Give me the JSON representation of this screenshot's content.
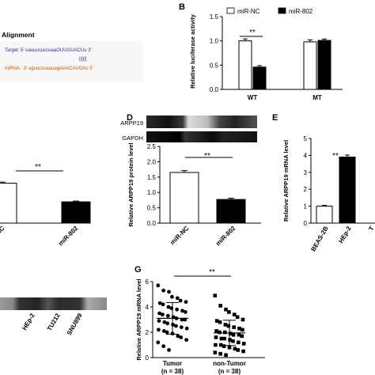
{
  "panels": {
    "a": {
      "header": "Alignment",
      "target_line": "Target: 5' uauuucuccuaaGUUGUACUu 3'",
      "pair_line": "||||||",
      "mirna_line": "miRNA : 3' uguuccuaauagAAACAUGAc 5'"
    },
    "b": {
      "letter": "B",
      "legend": [
        "miR-NC",
        "miR-802"
      ],
      "sig": "**"
    },
    "c": {
      "sig": "**"
    },
    "d": {
      "letter": "D",
      "blot_labels": [
        "ARPP19",
        "GAPDH"
      ],
      "sig": "**"
    },
    "e": {
      "letter": "E",
      "sig": "**"
    },
    "f": {
      "lanes": [
        "HEp-2",
        "TU212",
        "SNU899"
      ]
    },
    "g": {
      "letter": "G",
      "sig": "**"
    }
  },
  "chart_data": [
    {
      "id": "B",
      "type": "bar",
      "categories": [
        "WT",
        "MT"
      ],
      "series": [
        {
          "name": "miR-NC",
          "values": [
            1.0,
            0.98
          ],
          "errors": [
            0.04,
            0.04
          ],
          "color": "#ffffff"
        },
        {
          "name": "miR-802",
          "values": [
            0.46,
            1.01
          ],
          "errors": [
            0.03,
            0.03
          ],
          "color": "#000000"
        }
      ],
      "ylabel": "Relative luciferase activity",
      "ylim": [
        0,
        1.5
      ],
      "yticks": [
        "0.0",
        "0.5",
        "1.0",
        "1.5"
      ],
      "legend": "top"
    },
    {
      "id": "C",
      "type": "bar",
      "categories": [
        "miR-NC",
        "miR-802"
      ],
      "series": [
        {
          "name": "",
          "values": [
            1.05,
            0.56
          ],
          "errors": [
            0.03,
            0.02
          ],
          "colors": [
            "#ffffff",
            "#000000"
          ]
        }
      ],
      "ylim": [
        0,
        1.5
      ]
    },
    {
      "id": "D",
      "type": "bar",
      "categories": [
        "miR-NC",
        "miR-802"
      ],
      "series": [
        {
          "name": "",
          "values": [
            1.65,
            0.77
          ],
          "errors": [
            0.06,
            0.04
          ],
          "colors": [
            "#ffffff",
            "#000000"
          ]
        }
      ],
      "ylabel": "Relative ARPP19 protein level",
      "ylim": [
        0,
        2.5
      ],
      "yticks": [
        "0.0",
        "0.5",
        "1.0",
        "1.5",
        "2.0",
        "2.5"
      ]
    },
    {
      "id": "E",
      "type": "bar",
      "categories": [
        "BEAS-2B",
        "HEp-2",
        "T"
      ],
      "series": [
        {
          "name": "",
          "values": [
            1.0,
            3.9,
            0
          ],
          "errors": [
            0.05,
            0.12,
            0
          ],
          "colors": [
            "#ffffff",
            "#000000",
            "#000000"
          ]
        }
      ],
      "ylabel": "Relative ARPP19 mRNA level",
      "ylim": [
        0,
        5
      ],
      "yticks": [
        "0",
        "1",
        "2",
        "3",
        "4",
        "5"
      ]
    },
    {
      "id": "G",
      "type": "scatter",
      "categories": [
        "Tumor\n(n = 38)",
        "non-Tumor\n(n = 38)"
      ],
      "category_lines": [
        [
          "Tumor",
          "(n = 38)"
        ],
        [
          "non-Tumor",
          "(n = 38)"
        ]
      ],
      "ylabel": "Relative ARPP19 mRNA level",
      "ylim": [
        0,
        6
      ],
      "yticks": [
        "0",
        "2",
        "4",
        "6"
      ],
      "means": [
        3.1,
        1.95
      ],
      "sds": [
        1.25,
        1.0
      ],
      "tumor": [
        5.7,
        5.3,
        5.2,
        4.8,
        4.7,
        4.5,
        4.4,
        4.3,
        4.2,
        4.0,
        3.9,
        3.8,
        3.7,
        3.6,
        3.5,
        3.4,
        3.3,
        3.2,
        3.1,
        3.0,
        3.0,
        2.9,
        2.8,
        2.7,
        2.6,
        2.5,
        2.4,
        2.3,
        2.2,
        2.1,
        2.0,
        1.9,
        1.7,
        1.6,
        1.4,
        1.2,
        0.9,
        0.6
      ],
      "non_tumor": [
        4.9,
        4.1,
        3.8,
        3.6,
        3.4,
        3.2,
        3.0,
        2.9,
        2.8,
        2.6,
        2.5,
        2.4,
        2.3,
        2.2,
        2.1,
        2.0,
        2.0,
        1.9,
        1.8,
        1.8,
        1.7,
        1.6,
        1.5,
        1.5,
        1.4,
        1.3,
        1.2,
        1.1,
        1.0,
        1.0,
        0.9,
        0.8,
        0.7,
        0.6,
        0.5,
        0.4,
        0.3,
        0.2
      ]
    }
  ]
}
